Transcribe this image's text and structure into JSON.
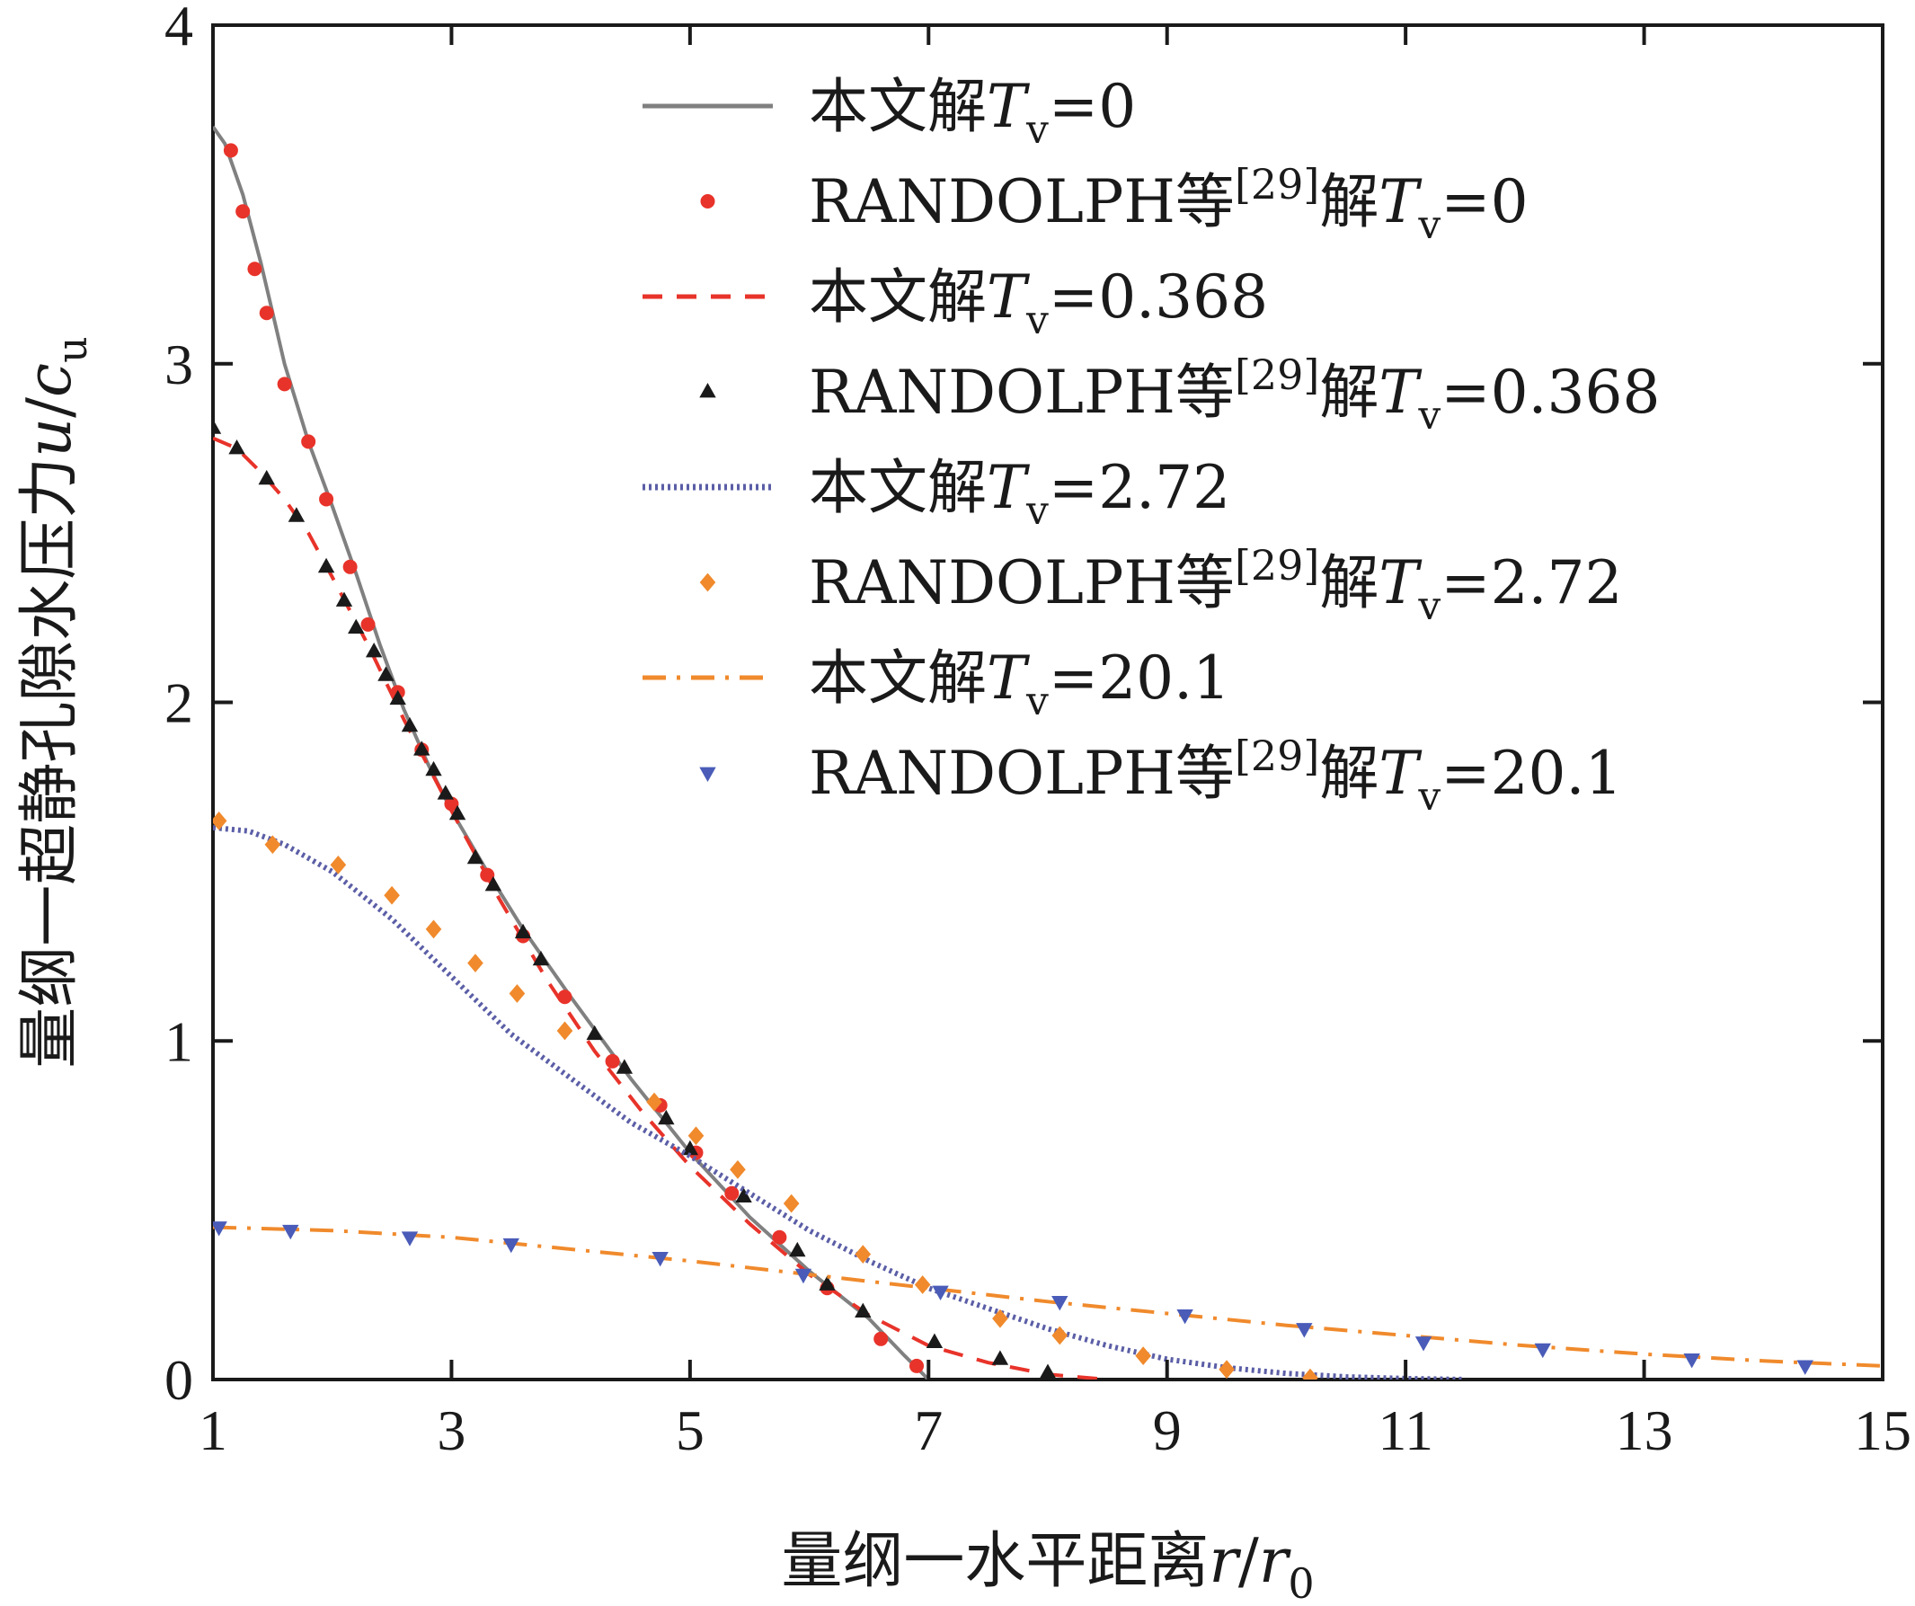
{
  "chart_data": {
    "type": "line",
    "xlabel": {
      "text": "量纲一水平距离",
      "var": "r",
      "var2": "r",
      "sub2": "0"
    },
    "ylabel": {
      "text": "量纲一超静孔隙水压力",
      "var": "u",
      "var2": "c",
      "sub2": "u"
    },
    "xlim": [
      1,
      15
    ],
    "ylim": [
      0,
      4
    ],
    "xticks": [
      1,
      3,
      5,
      7,
      9,
      11,
      13,
      15
    ],
    "yticks": [
      0,
      1,
      2,
      3,
      4
    ],
    "grid": false,
    "legend_position": "top-right",
    "series": [
      {
        "name": "本文解T_v=0",
        "label": {
          "prefix": "本文解",
          "sym": "T",
          "sub": "v",
          "value": "=0"
        },
        "style": "solid",
        "color": "#808080",
        "x": [
          1.0,
          1.1,
          1.25,
          1.4,
          1.5,
          1.6,
          1.8,
          2.0,
          2.2,
          2.4,
          2.6,
          2.8,
          3.0,
          3.3,
          3.6,
          4.0,
          4.5,
          5.0,
          5.5,
          6.0,
          6.5,
          6.8,
          7.0
        ],
        "y": [
          3.7,
          3.65,
          3.5,
          3.3,
          3.15,
          3.0,
          2.77,
          2.58,
          2.38,
          2.17,
          1.98,
          1.82,
          1.68,
          1.5,
          1.33,
          1.13,
          0.89,
          0.67,
          0.48,
          0.32,
          0.18,
          0.07,
          0.0
        ]
      },
      {
        "name": "RANDOLPH等[29]解T_v=0",
        "label": {
          "prefix": "RANDOLPH等",
          "ref": "[29]",
          "mid": "解",
          "sym": "T",
          "sub": "v",
          "value": "=0"
        },
        "marker": "circle",
        "color": "#e8332a",
        "x": [
          1.15,
          1.25,
          1.35,
          1.45,
          1.6,
          1.8,
          1.95,
          2.15,
          2.3,
          2.55,
          2.75,
          3.0,
          3.3,
          3.6,
          3.95,
          4.35,
          4.75,
          5.05,
          5.35,
          5.75,
          6.15,
          6.6,
          6.9
        ],
        "y": [
          3.63,
          3.45,
          3.28,
          3.15,
          2.94,
          2.77,
          2.6,
          2.4,
          2.23,
          2.03,
          1.86,
          1.7,
          1.49,
          1.31,
          1.13,
          0.94,
          0.81,
          0.67,
          0.55,
          0.42,
          0.27,
          0.12,
          0.04
        ]
      },
      {
        "name": "本文解T_v=0.368",
        "label": {
          "prefix": "本文解",
          "sym": "T",
          "sub": "v",
          "value": "=0.368"
        },
        "style": "dashed",
        "color": "#e8332a",
        "x": [
          1.0,
          1.2,
          1.4,
          1.6,
          1.8,
          2.0,
          2.3,
          2.6,
          3.0,
          3.4,
          3.8,
          4.2,
          4.6,
          5.0,
          5.5,
          6.0,
          6.5,
          7.0,
          7.5,
          8.0,
          8.5
        ],
        "y": [
          2.78,
          2.75,
          2.68,
          2.6,
          2.5,
          2.37,
          2.17,
          1.95,
          1.68,
          1.42,
          1.18,
          0.97,
          0.79,
          0.63,
          0.46,
          0.31,
          0.19,
          0.1,
          0.05,
          0.015,
          0.0
        ]
      },
      {
        "name": "RANDOLPH等[29]解T_v=0.368",
        "label": {
          "prefix": "RANDOLPH等",
          "ref": "[29]",
          "mid": "解",
          "sym": "T",
          "sub": "v",
          "value": "=0.368"
        },
        "marker": "triangle-up",
        "color": "#1a1a1a",
        "x": [
          1.0,
          1.2,
          1.45,
          1.7,
          1.95,
          2.1,
          2.2,
          2.35,
          2.45,
          2.55,
          2.65,
          2.75,
          2.85,
          2.95,
          3.05,
          3.2,
          3.35,
          3.6,
          3.75,
          4.2,
          4.45,
          4.8,
          5.0,
          5.45,
          5.9,
          6.15,
          6.45,
          7.05,
          7.6,
          8.0
        ],
        "y": [
          2.81,
          2.75,
          2.66,
          2.55,
          2.4,
          2.3,
          2.22,
          2.15,
          2.08,
          2.01,
          1.93,
          1.86,
          1.8,
          1.73,
          1.67,
          1.54,
          1.46,
          1.32,
          1.24,
          1.02,
          0.92,
          0.77,
          0.68,
          0.54,
          0.38,
          0.28,
          0.2,
          0.11,
          0.06,
          0.02
        ]
      },
      {
        "name": "本文解T_v=2.72",
        "label": {
          "prefix": "本文解",
          "sym": "T",
          "sub": "v",
          "value": "=2.72"
        },
        "style": "dotted",
        "color": "#5b5ea6",
        "x": [
          1.0,
          1.3,
          1.6,
          2.0,
          2.5,
          3.0,
          3.5,
          4.0,
          4.5,
          5.0,
          5.5,
          6.0,
          6.5,
          7.0,
          7.5,
          8.0,
          8.5,
          9.0,
          9.5,
          10.0,
          10.5,
          11.0,
          11.5
        ],
        "y": [
          1.63,
          1.62,
          1.58,
          1.5,
          1.36,
          1.19,
          1.02,
          0.89,
          0.76,
          0.66,
          0.55,
          0.44,
          0.35,
          0.27,
          0.21,
          0.15,
          0.1,
          0.06,
          0.035,
          0.018,
          0.008,
          0.003,
          0.0
        ]
      },
      {
        "name": "RANDOLPH等[29]解T_v=2.72",
        "label": {
          "prefix": "RANDOLPH等",
          "ref": "[29]",
          "mid": "解",
          "sym": "T",
          "sub": "v",
          "value": "=2.72"
        },
        "marker": "diamond",
        "color": "#f08a2c",
        "x": [
          1.05,
          1.5,
          2.05,
          2.5,
          2.85,
          3.2,
          3.55,
          3.95,
          4.7,
          5.05,
          5.4,
          5.85,
          6.45,
          6.95,
          7.6,
          8.1,
          8.8,
          9.5,
          10.2
        ],
        "y": [
          1.65,
          1.58,
          1.52,
          1.43,
          1.33,
          1.23,
          1.14,
          1.03,
          0.82,
          0.72,
          0.62,
          0.52,
          0.37,
          0.28,
          0.18,
          0.13,
          0.07,
          0.03,
          0.005
        ]
      },
      {
        "name": "本文解T_v=20.1",
        "label": {
          "prefix": "本文解",
          "sym": "T",
          "sub": "v",
          "value": "=20.1"
        },
        "style": "dashdot",
        "color": "#f08a2c",
        "x": [
          1.0,
          2.0,
          3.0,
          4.0,
          5.0,
          6.0,
          7.0,
          8.0,
          9.0,
          10.0,
          11.0,
          12.0,
          13.0,
          14.0,
          15.0
        ],
        "y": [
          0.45,
          0.44,
          0.42,
          0.385,
          0.35,
          0.31,
          0.27,
          0.23,
          0.195,
          0.16,
          0.13,
          0.1,
          0.075,
          0.055,
          0.04
        ]
      },
      {
        "name": "RANDOLPH等[29]解T_v=20.1",
        "label": {
          "prefix": "RANDOLPH等",
          "ref": "[29]",
          "mid": "解",
          "sym": "T",
          "sub": "v",
          "value": "=20.1"
        },
        "marker": "triangle-down",
        "color": "#4a5cb8",
        "x": [
          1.05,
          1.65,
          2.65,
          3.5,
          4.75,
          5.95,
          7.1,
          8.1,
          9.15,
          10.15,
          11.15,
          12.15,
          13.4,
          14.35
        ],
        "y": [
          0.45,
          0.44,
          0.42,
          0.4,
          0.36,
          0.31,
          0.26,
          0.23,
          0.19,
          0.15,
          0.11,
          0.09,
          0.06,
          0.04
        ]
      }
    ]
  }
}
